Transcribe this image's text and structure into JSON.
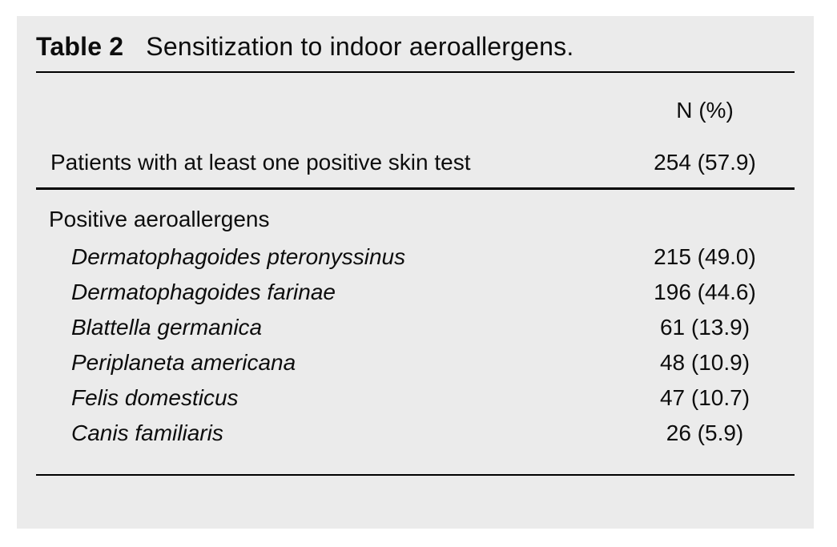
{
  "colors": {
    "page_bg": "#ffffff",
    "panel_bg": "#ebebeb",
    "text": "#0d0d0d",
    "rule": "#000000"
  },
  "table": {
    "label": "Table 2",
    "caption": "Sensitization to indoor aeroallergens.",
    "column_header": "N (%)",
    "summary_row": {
      "label": "Patients with at least one positive skin test",
      "value": "254 (57.9)"
    },
    "section": {
      "heading": "Positive aeroallergens",
      "rows": [
        {
          "label": "Dermatophagoides pteronyssinus",
          "value": "215 (49.0)"
        },
        {
          "label": "Dermatophagoides farinae",
          "value": "196 (44.6)"
        },
        {
          "label": "Blattella germanica",
          "value": "61 (13.9)"
        },
        {
          "label": "Periplaneta americana",
          "value": "48 (10.9)"
        },
        {
          "label": "Felis domesticus",
          "value": "47 (10.7)"
        },
        {
          "label": "Canis familiaris",
          "value": "26 (5.9)"
        }
      ]
    }
  },
  "chart_data": {
    "type": "table",
    "title": "Table 2 Sensitization to indoor aeroallergens.",
    "columns": [
      "",
      "N (%)"
    ],
    "rows": [
      [
        "Patients with at least one positive skin test",
        "254 (57.9)"
      ],
      [
        "Positive aeroallergens",
        ""
      ],
      [
        "Dermatophagoides pteronyssinus",
        "215 (49.0)"
      ],
      [
        "Dermatophagoides farinae",
        "196 (44.6)"
      ],
      [
        "Blattella germanica",
        "61 (13.9)"
      ],
      [
        "Periplaneta americana",
        "48 (10.9)"
      ],
      [
        "Felis domesticus",
        "47 (10.7)"
      ],
      [
        "Canis familiaris",
        "26 (5.9)"
      ]
    ]
  }
}
